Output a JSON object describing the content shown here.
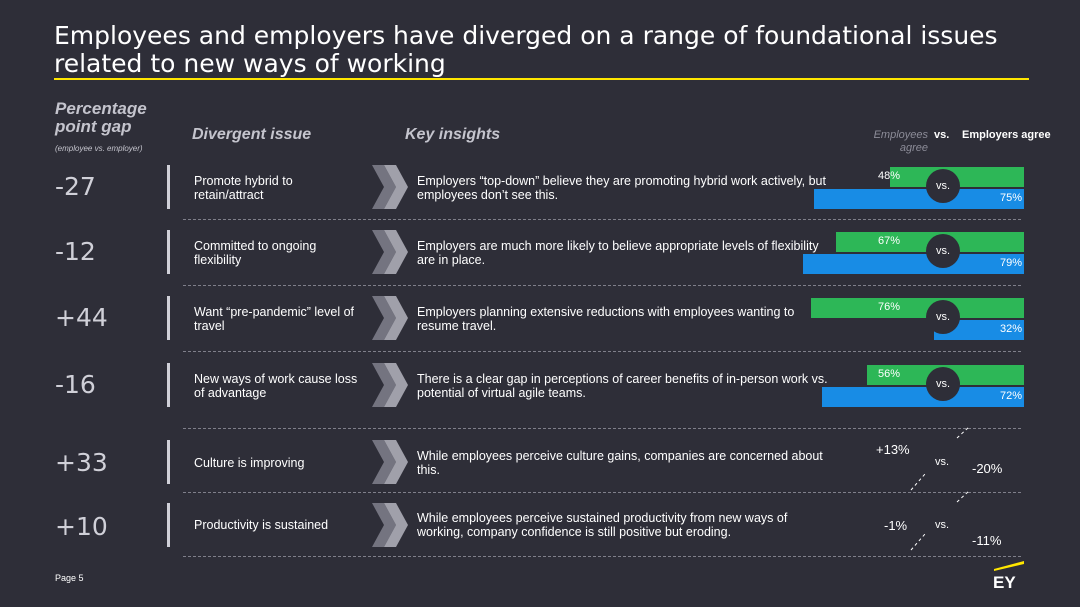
{
  "title": "Employees and employers have diverged on a range of foundational issues related to new ways of working",
  "headers": {
    "gap": "Percentage point gap",
    "gap_sub": "(employee vs. employer)",
    "issue": "Divergent issue",
    "insight": "Key insights",
    "employees": "Employees agree",
    "vs": "vs.",
    "employers": "Employers agree"
  },
  "rows": [
    {
      "gap": "-27",
      "issue": "Promote hybrid to retain/attract",
      "insight": "Employers “top-down” believe they are promoting hybrid work actively, but employees don’t see this.",
      "employees": 48,
      "employers": 75,
      "employees_label": "48%",
      "employers_label": "75%",
      "vs": "vs."
    },
    {
      "gap": "-12",
      "issue": "Committed to ongoing flexibility",
      "insight": "Employers are much more likely to believe appropriate levels of flexibility are in place.",
      "employees": 67,
      "employers": 79,
      "employees_label": "67%",
      "employers_label": "79%",
      "vs": "vs."
    },
    {
      "gap": "+44",
      "issue": "Want “pre-pandemic” level of travel",
      "insight": "Employers planning extensive reductions with employees wanting to resume travel.",
      "employees": 76,
      "employers": 32,
      "employees_label": "76%",
      "employers_label": "32%",
      "vs": "vs."
    },
    {
      "gap": "-16",
      "issue": "New ways of work cause loss of advantage",
      "insight": "There is a clear gap in perceptions of career benefits of in-person work vs. potential of virtual agile teams.",
      "employees": 56,
      "employers": 72,
      "employees_label": "56%",
      "employers_label": "72%",
      "vs": "vs."
    },
    {
      "gap": "+33",
      "issue": "Culture is improving",
      "insight": "While employees perceive culture gains, companies are concerned about this.",
      "employees_label": "+13%",
      "employers_label": "-20%",
      "vs": "vs."
    },
    {
      "gap": "+10",
      "issue": "Productivity is sustained",
      "insight": "While employees perceive sustained productivity from new ways of working, company confidence is still positive but eroding.",
      "employees_label": "-1%",
      "employers_label": "-11%",
      "vs": "vs."
    }
  ],
  "footer": {
    "page": "Page 5"
  },
  "logo_text": "EY",
  "colors": {
    "background": "#2e2e38",
    "accent": "#ffe600",
    "employees": "#2db757",
    "employers": "#188ce5"
  }
}
